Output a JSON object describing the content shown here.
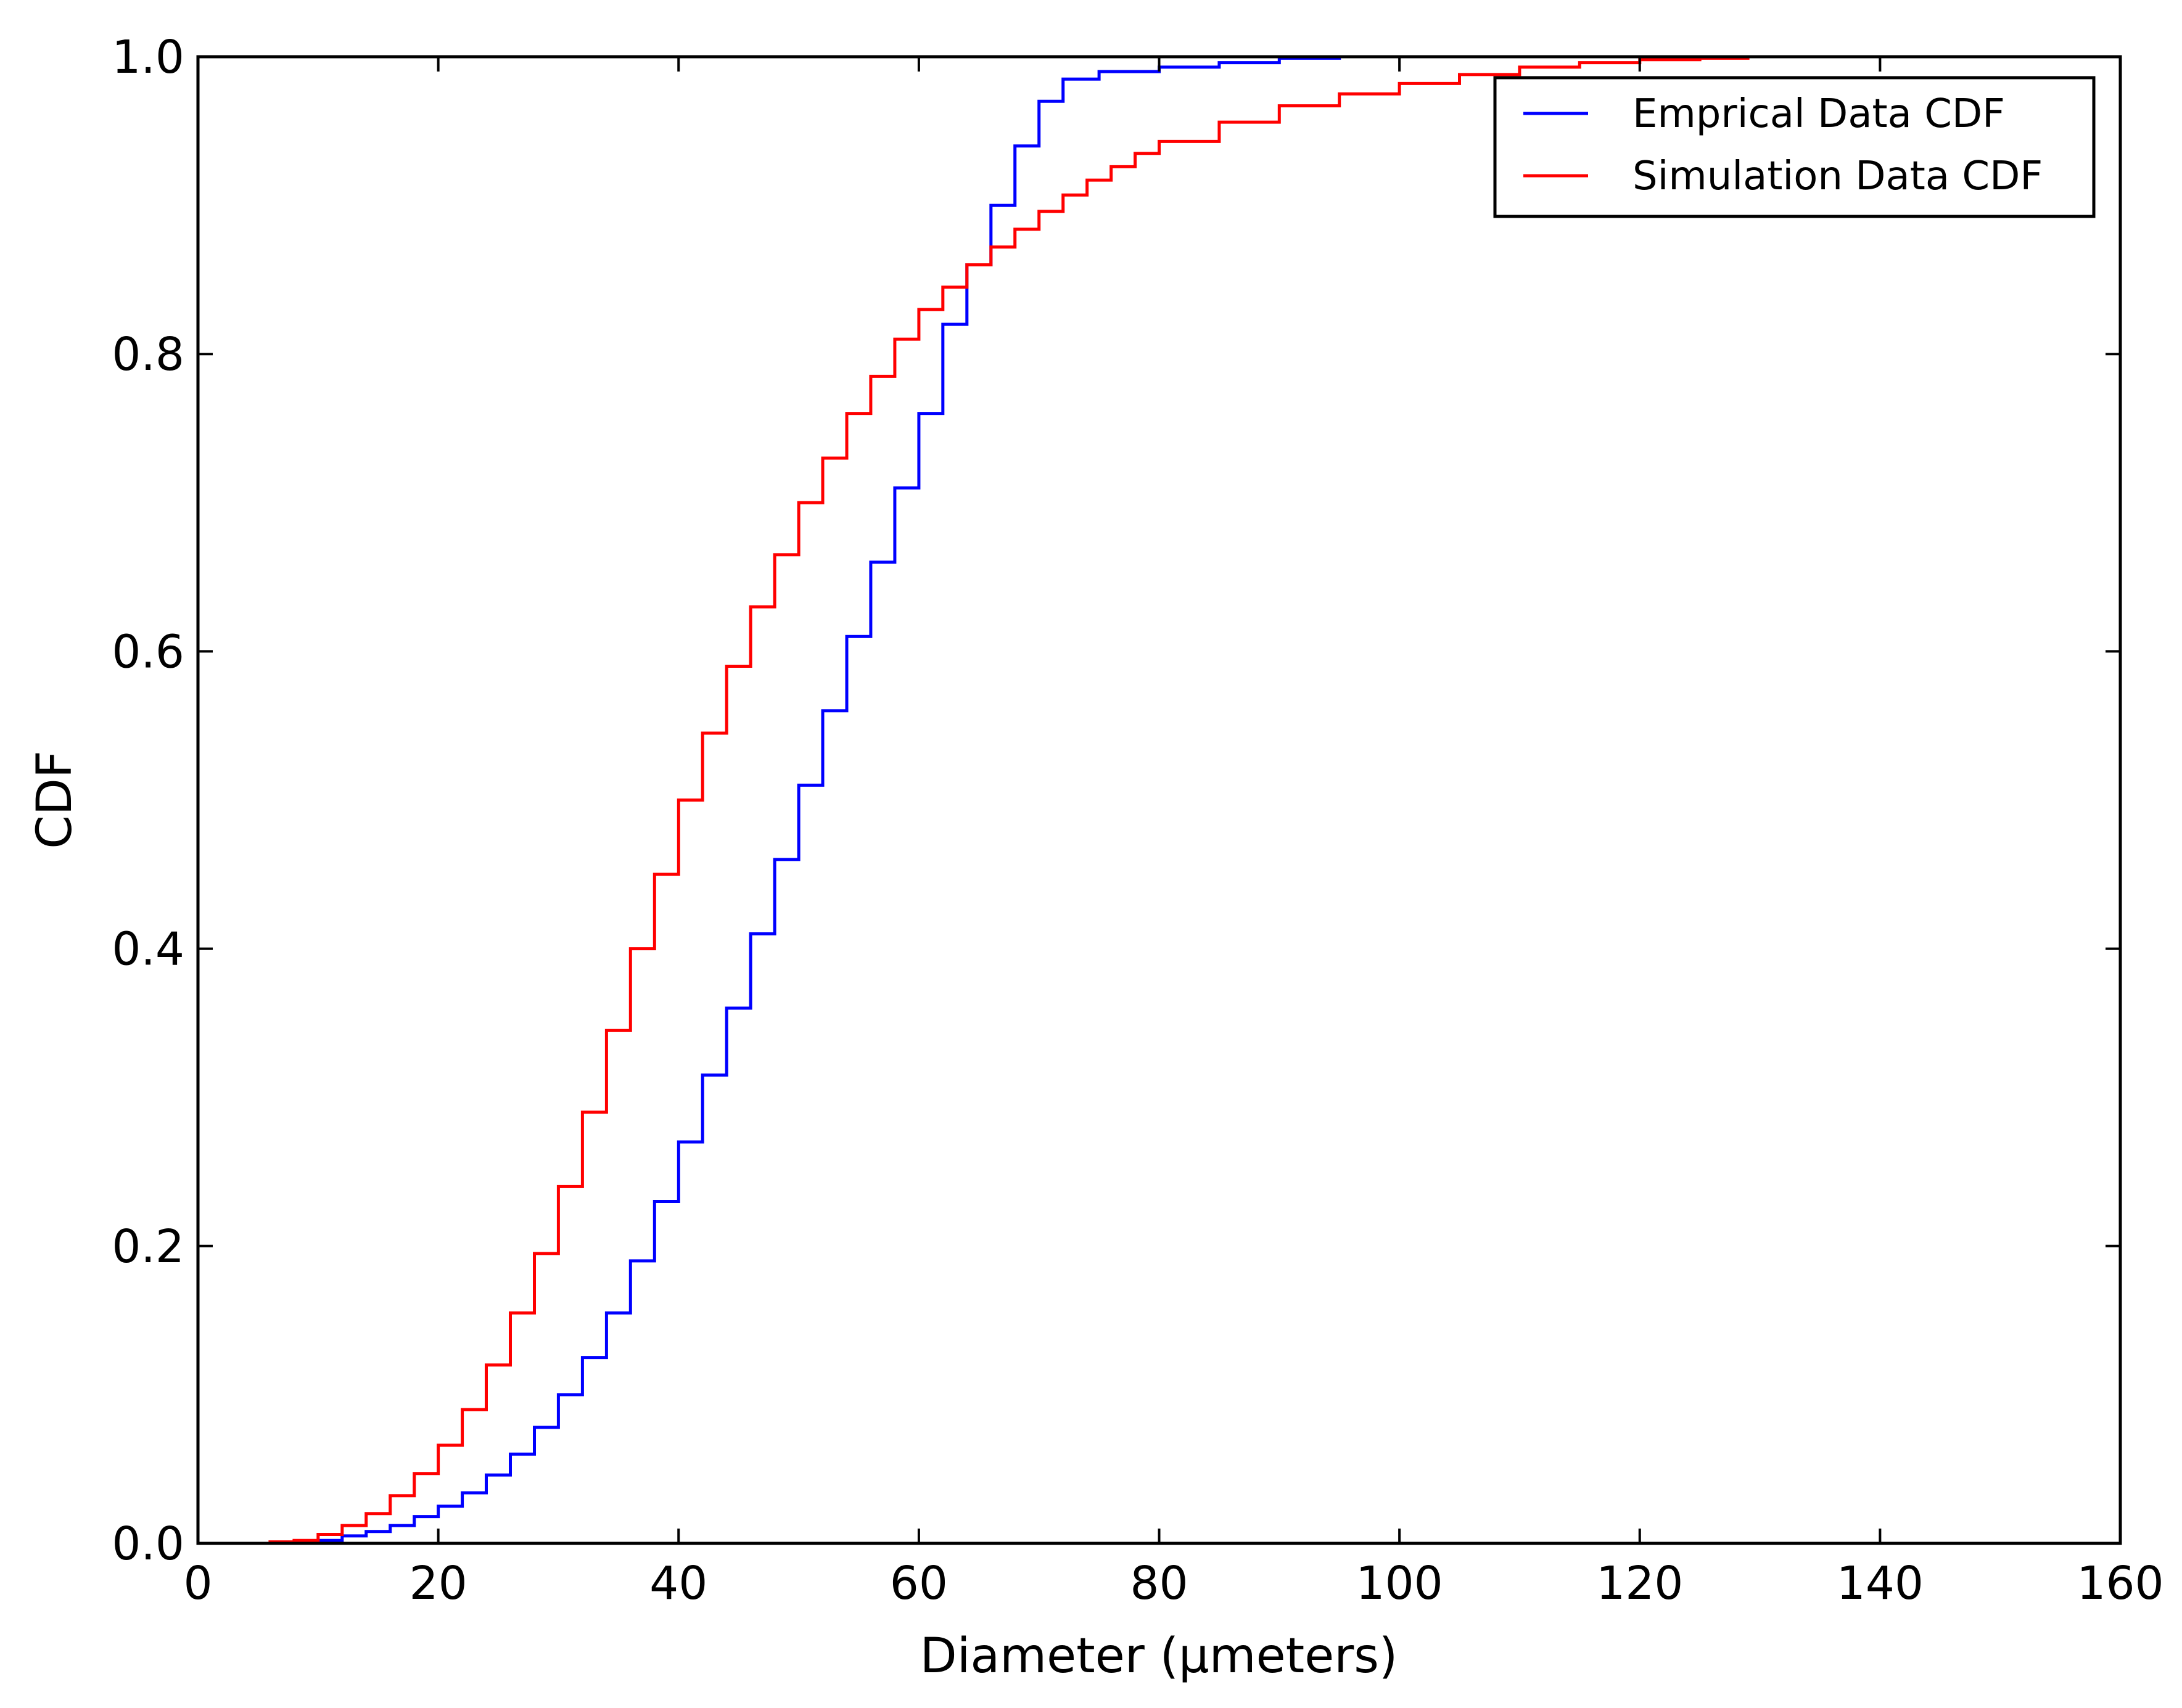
{
  "chart_data": {
    "type": "line",
    "drawstyle": "steps",
    "xlabel": "Diameter (μmeters)",
    "ylabel": "CDF",
    "xlim": [
      0,
      160
    ],
    "ylim": [
      0,
      1.0
    ],
    "xticks": [
      0,
      20,
      40,
      60,
      80,
      100,
      120,
      140,
      160
    ],
    "xtick_labels": [
      "0",
      "20",
      "40",
      "60",
      "80",
      "100",
      "120",
      "140",
      "160"
    ],
    "yticks": [
      0,
      0.2,
      0.4,
      0.6,
      0.8,
      1.0
    ],
    "ytick_labels": [
      "0.0",
      "0.2",
      "0.4",
      "0.6",
      "0.8",
      "1.0"
    ],
    "grid": false,
    "legend_position": "top-right",
    "series": [
      {
        "name": "Emprical Data CDF",
        "color": "#0000ff",
        "points": [
          [
            0,
            0
          ],
          [
            8,
            0.001
          ],
          [
            10,
            0.002
          ],
          [
            12,
            0.005
          ],
          [
            14,
            0.008
          ],
          [
            16,
            0.012
          ],
          [
            18,
            0.018
          ],
          [
            20,
            0.025
          ],
          [
            22,
            0.034
          ],
          [
            24,
            0.046
          ],
          [
            26,
            0.06
          ],
          [
            28,
            0.078
          ],
          [
            30,
            0.1
          ],
          [
            32,
            0.125
          ],
          [
            34,
            0.155
          ],
          [
            36,
            0.19
          ],
          [
            38,
            0.23
          ],
          [
            40,
            0.27
          ],
          [
            42,
            0.315
          ],
          [
            44,
            0.36
          ],
          [
            46,
            0.41
          ],
          [
            48,
            0.46
          ],
          [
            50,
            0.51
          ],
          [
            52,
            0.56
          ],
          [
            54,
            0.61
          ],
          [
            56,
            0.66
          ],
          [
            58,
            0.71
          ],
          [
            60,
            0.76
          ],
          [
            62,
            0.82
          ],
          [
            64,
            0.86
          ],
          [
            66,
            0.9
          ],
          [
            68,
            0.94
          ],
          [
            70,
            0.97
          ],
          [
            72,
            0.985
          ],
          [
            75,
            0.99
          ],
          [
            80,
            0.993
          ],
          [
            85,
            0.996
          ],
          [
            90,
            0.999
          ],
          [
            95,
            1.0
          ],
          [
            98,
            1.0
          ]
        ]
      },
      {
        "name": "Simulation Data CDF",
        "color": "#ff0000",
        "points": [
          [
            0,
            0
          ],
          [
            6,
            0.001
          ],
          [
            8,
            0.002
          ],
          [
            10,
            0.006
          ],
          [
            12,
            0.012
          ],
          [
            14,
            0.02
          ],
          [
            16,
            0.032
          ],
          [
            18,
            0.047
          ],
          [
            20,
            0.066
          ],
          [
            22,
            0.09
          ],
          [
            24,
            0.12
          ],
          [
            26,
            0.155
          ],
          [
            28,
            0.195
          ],
          [
            30,
            0.24
          ],
          [
            32,
            0.29
          ],
          [
            34,
            0.345
          ],
          [
            36,
            0.4
          ],
          [
            38,
            0.45
          ],
          [
            40,
            0.5
          ],
          [
            42,
            0.545
          ],
          [
            44,
            0.59
          ],
          [
            46,
            0.63
          ],
          [
            48,
            0.665
          ],
          [
            50,
            0.7
          ],
          [
            52,
            0.73
          ],
          [
            54,
            0.76
          ],
          [
            56,
            0.785
          ],
          [
            58,
            0.81
          ],
          [
            60,
            0.83
          ],
          [
            62,
            0.845
          ],
          [
            64,
            0.86
          ],
          [
            66,
            0.872
          ],
          [
            68,
            0.884
          ],
          [
            70,
            0.896
          ],
          [
            72,
            0.907
          ],
          [
            74,
            0.917
          ],
          [
            76,
            0.926
          ],
          [
            78,
            0.935
          ],
          [
            80,
            0.943
          ],
          [
            85,
            0.956
          ],
          [
            90,
            0.967
          ],
          [
            95,
            0.975
          ],
          [
            100,
            0.982
          ],
          [
            105,
            0.988
          ],
          [
            110,
            0.993
          ],
          [
            115,
            0.996
          ],
          [
            120,
            0.998
          ],
          [
            125,
            0.999
          ],
          [
            129,
            1.0
          ]
        ]
      }
    ]
  }
}
